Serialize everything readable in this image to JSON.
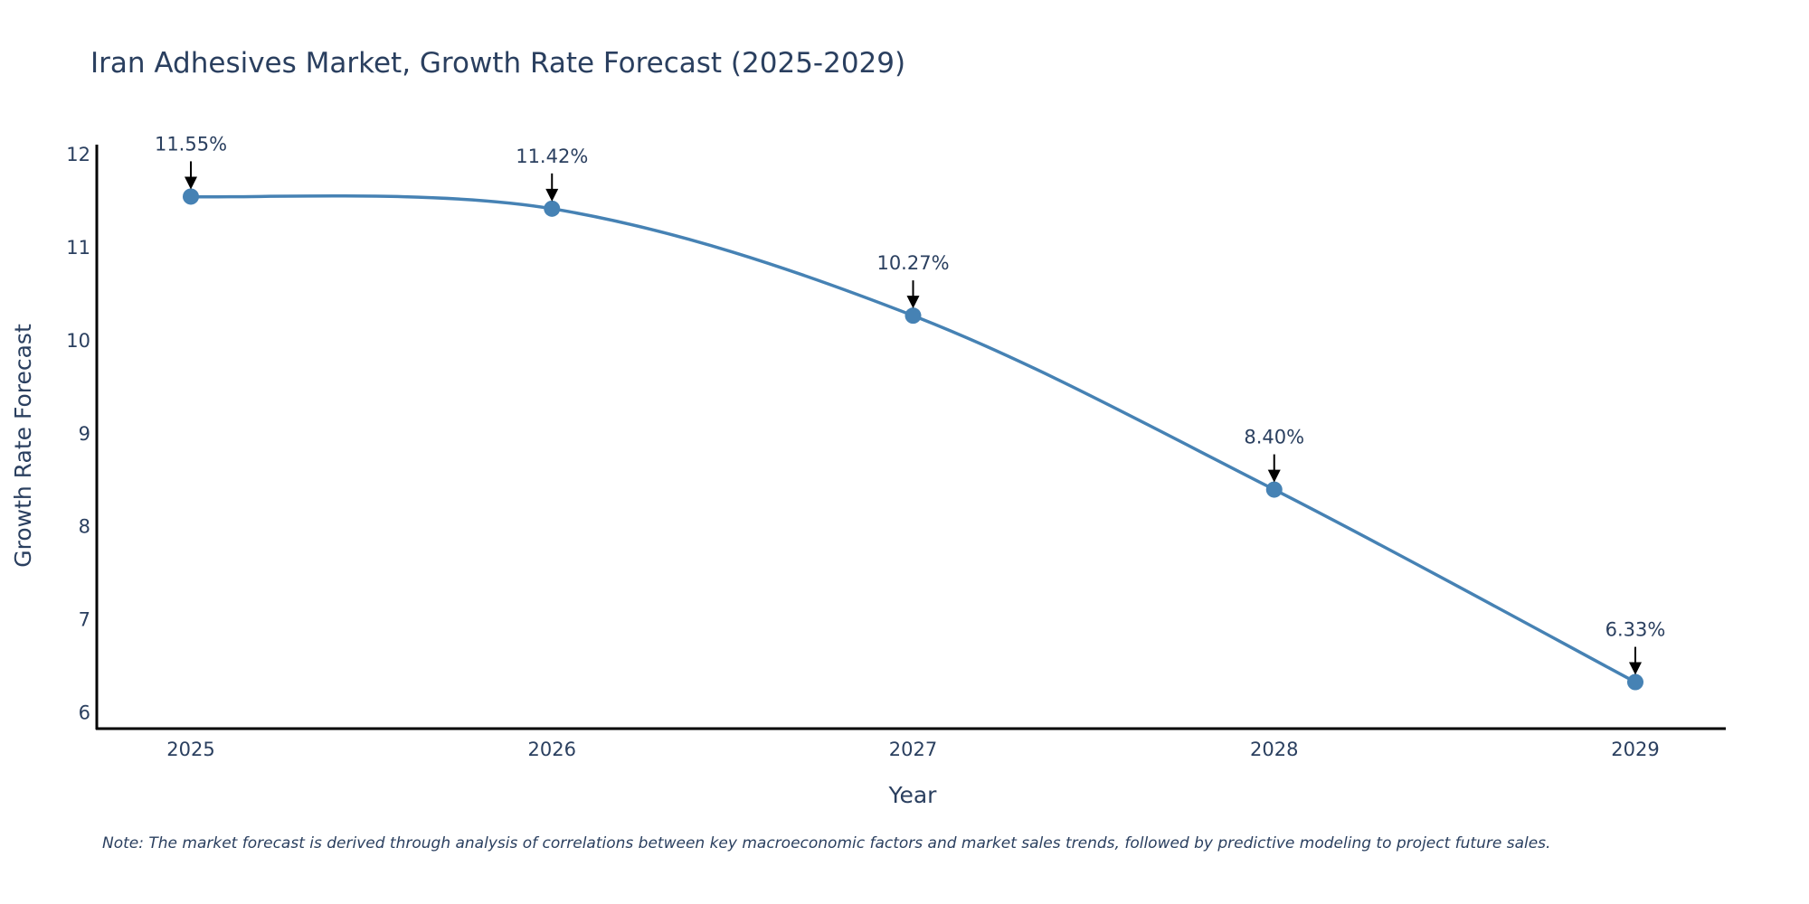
{
  "colors": {
    "line": "#4682b4",
    "axis": "#000000",
    "text": "#2a3f5f",
    "arrow": "#000000",
    "background": "#ffffff"
  },
  "note": "Note: The market forecast is derived through analysis of correlations between key macroeconomic factors and market sales trends, followed by predictive modeling to project future sales.",
  "chart_data": {
    "type": "line",
    "title": "Iran Adhesives Market, Growth Rate Forecast (2025-2029)",
    "xlabel": "Year",
    "ylabel": "Growth Rate Forecast",
    "categories": [
      "2025",
      "2026",
      "2027",
      "2028",
      "2029"
    ],
    "series": [
      {
        "name": "Growth Rate Forecast",
        "values": [
          11.55,
          11.42,
          10.27,
          8.4,
          6.33
        ],
        "labels": [
          "11.55%",
          "11.42%",
          "10.27%",
          "8.40%",
          "6.33%"
        ]
      }
    ],
    "yticks": [
      6,
      7,
      8,
      9,
      10,
      11,
      12
    ],
    "ylim": [
      5.83,
      12.05
    ],
    "line_shape": "spline",
    "markers": true,
    "grid": false,
    "legend": "none"
  }
}
